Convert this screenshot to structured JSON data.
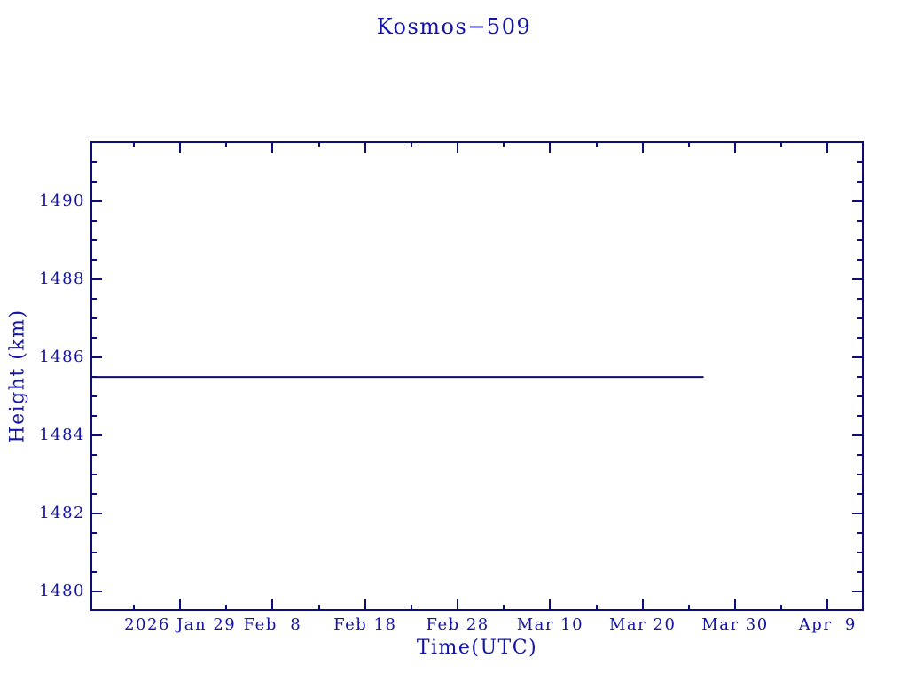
{
  "colors": {
    "text": "#1414a6",
    "axis": "#0d0d78",
    "series": "#0d0d70",
    "background": "#ffffff"
  },
  "header": {
    "title": "Kosmos−509"
  },
  "chart_data": {
    "type": "line",
    "title": "Kosmos−509",
    "xlabel": "Time(UTC)",
    "ylabel": "Height (km)",
    "grid": false,
    "legend": false,
    "x_axis": {
      "unit": "days since 2026 Jan 29 (UTC)",
      "range": [
        -9.7,
        73.9
      ],
      "major_ticks": [
        {
          "value": 0,
          "label": "2026 Jan 29"
        },
        {
          "value": 10,
          "label": "Feb  8"
        },
        {
          "value": 20,
          "label": "Feb 18"
        },
        {
          "value": 30,
          "label": "Feb 28"
        },
        {
          "value": 40,
          "label": "Mar 10"
        },
        {
          "value": 50,
          "label": "Mar 20"
        },
        {
          "value": 60,
          "label": "Mar 30"
        },
        {
          "value": 70,
          "label": "Apr  9"
        }
      ],
      "minor_ticks": [
        -5,
        5,
        15,
        25,
        35,
        45,
        55,
        65
      ]
    },
    "y_axis": {
      "unit": "km",
      "range": [
        1479.5,
        1491.55
      ],
      "major_ticks": [
        {
          "value": 1480,
          "label": "1480"
        },
        {
          "value": 1482,
          "label": "1482"
        },
        {
          "value": 1484,
          "label": "1484"
        },
        {
          "value": 1486,
          "label": "1486"
        },
        {
          "value": 1488,
          "label": "1488"
        },
        {
          "value": 1490,
          "label": "1490"
        }
      ],
      "minor_step": 0.5
    },
    "series": [
      {
        "name": "height",
        "color": "#0d0d70",
        "points": [
          {
            "x": -9.7,
            "y": 1485.5
          },
          {
            "x": 56.6,
            "y": 1485.5
          }
        ]
      }
    ]
  }
}
